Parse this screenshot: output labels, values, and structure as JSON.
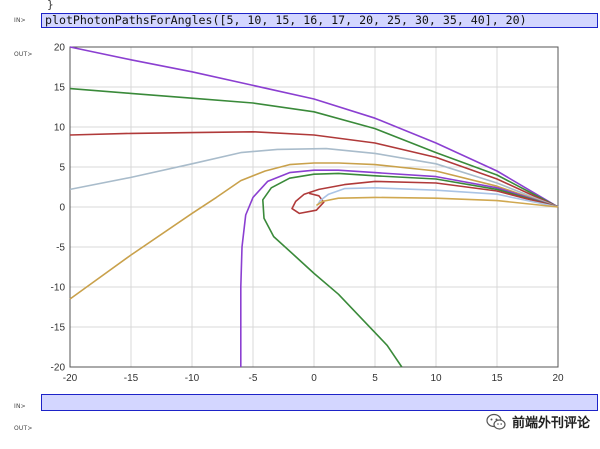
{
  "notebook": {
    "prev_brace": "}",
    "cells": [
      {
        "in_label": "IN>",
        "code": "plotPhotonPathsForAngles([5, 10, 15, 16, 17, 20, 25, 30, 35, 40], 20)",
        "out_label": "OUT>"
      },
      {
        "in_label": "IN>",
        "code": "",
        "out_label": "OUT>"
      }
    ]
  },
  "watermark": {
    "text": "前端外刊评论"
  },
  "colors": {
    "cell_fill": "#d3d6ff",
    "cell_border": "#1d23c8",
    "grid": "#d8d8d8"
  },
  "chart_data": {
    "type": "line",
    "xlim": [
      -20,
      20
    ],
    "ylim": [
      -20,
      20
    ],
    "x_ticks": [
      -20,
      -15,
      -10,
      -5,
      0,
      5,
      10,
      15,
      20
    ],
    "y_ticks": [
      20,
      15,
      10,
      5,
      0,
      -5,
      -10,
      -15,
      -20
    ],
    "grid": true,
    "series": [
      {
        "color": "#8b3fd1",
        "points": [
          [
            20,
            0
          ],
          [
            15,
            4.5
          ],
          [
            10,
            8
          ],
          [
            5,
            11.1
          ],
          [
            0,
            13.5
          ],
          [
            -5,
            15.2
          ],
          [
            -10,
            16.9
          ],
          [
            -15,
            18.4
          ],
          [
            -20,
            20
          ]
        ]
      },
      {
        "color": "#3a8a3a",
        "points": [
          [
            20,
            0
          ],
          [
            15,
            4
          ],
          [
            10,
            6.8
          ],
          [
            5,
            9.8
          ],
          [
            0,
            11.9
          ],
          [
            -5,
            13
          ],
          [
            -10,
            13.6
          ],
          [
            -15,
            14.2
          ],
          [
            -20,
            14.8
          ]
        ]
      },
      {
        "color": "#b03a3a",
        "points": [
          [
            20,
            0
          ],
          [
            15,
            3.5
          ],
          [
            10,
            6.2
          ],
          [
            5,
            8
          ],
          [
            0,
            9
          ],
          [
            -5,
            9.4
          ],
          [
            -10,
            9.3
          ],
          [
            -15,
            9.2
          ],
          [
            -20,
            9
          ]
        ]
      },
      {
        "color": "#a9bccb",
        "points": [
          [
            20,
            0
          ],
          [
            15,
            3
          ],
          [
            10,
            5.4
          ],
          [
            5,
            6.7
          ],
          [
            1,
            7.3
          ],
          [
            -3,
            7.2
          ],
          [
            -6,
            6.8
          ],
          [
            -10,
            5.4
          ],
          [
            -15,
            3.7
          ],
          [
            -20,
            2.2
          ]
        ]
      },
      {
        "color": "#c9a14b",
        "points": [
          [
            20,
            0
          ],
          [
            15,
            2.6
          ],
          [
            10,
            4.5
          ],
          [
            5,
            5.3
          ],
          [
            2,
            5.5
          ],
          [
            0,
            5.5
          ],
          [
            -2,
            5.3
          ],
          [
            -4,
            4.5
          ],
          [
            -6,
            3.3
          ],
          [
            -8,
            1.2
          ],
          [
            -10,
            -0.8
          ],
          [
            -15,
            -6
          ],
          [
            -20,
            -11.5
          ]
        ]
      },
      {
        "color": "#8b3fd1",
        "points": [
          [
            20,
            0
          ],
          [
            15,
            2.4
          ],
          [
            10,
            3.8
          ],
          [
            5,
            4.3
          ],
          [
            2,
            4.6
          ],
          [
            0,
            4.6
          ],
          [
            -2,
            4.3
          ],
          [
            -3.8,
            3.2
          ],
          [
            -5,
            1.2
          ],
          [
            -5.6,
            -1
          ],
          [
            -5.9,
            -5
          ],
          [
            -6,
            -10
          ],
          [
            -6,
            -15
          ],
          [
            -6,
            -20
          ]
        ]
      },
      {
        "color": "#3a8a3a",
        "points": [
          [
            20,
            0
          ],
          [
            15,
            2.2
          ],
          [
            10,
            3.5
          ],
          [
            5,
            3.9
          ],
          [
            2,
            4.2
          ],
          [
            0,
            4.1
          ],
          [
            -2,
            3.6
          ],
          [
            -3.5,
            2.4
          ],
          [
            -4.2,
            0.9
          ],
          [
            -4.1,
            -1.4
          ],
          [
            -3.3,
            -3.7
          ],
          [
            -1.5,
            -6.2
          ],
          [
            0,
            -8.3
          ],
          [
            2,
            -10.9
          ],
          [
            4,
            -14.1
          ],
          [
            6,
            -17.3
          ],
          [
            7.2,
            -20
          ]
        ]
      },
      {
        "color": "#b03a3a",
        "points": [
          [
            20,
            0
          ],
          [
            15,
            2
          ],
          [
            10,
            3
          ],
          [
            5,
            3.2
          ],
          [
            2.5,
            2.8
          ],
          [
            0.4,
            2.2
          ],
          [
            -0.8,
            1.6
          ],
          [
            -1.5,
            0.7
          ],
          [
            -1.8,
            -0.2
          ],
          [
            -1.2,
            -0.8
          ],
          [
            0.2,
            -0.4
          ],
          [
            0.8,
            0.6
          ],
          [
            0.4,
            1.4
          ],
          [
            -0.4,
            1.7
          ]
        ]
      },
      {
        "color": "#aac4e6",
        "points": [
          [
            20,
            0
          ],
          [
            15,
            1.6
          ],
          [
            10,
            2.1
          ],
          [
            5,
            2.4
          ],
          [
            2.5,
            2.3
          ],
          [
            1.2,
            1.6
          ],
          [
            0.5,
            0.8
          ],
          [
            0.3,
            0.3
          ]
        ]
      },
      {
        "color": "#d0a850",
        "points": [
          [
            20,
            0
          ],
          [
            15,
            0.8
          ],
          [
            10,
            1.1
          ],
          [
            5,
            1.2
          ],
          [
            2,
            1.1
          ],
          [
            0.7,
            0.7
          ],
          [
            0.2,
            0.2
          ]
        ]
      }
    ]
  }
}
